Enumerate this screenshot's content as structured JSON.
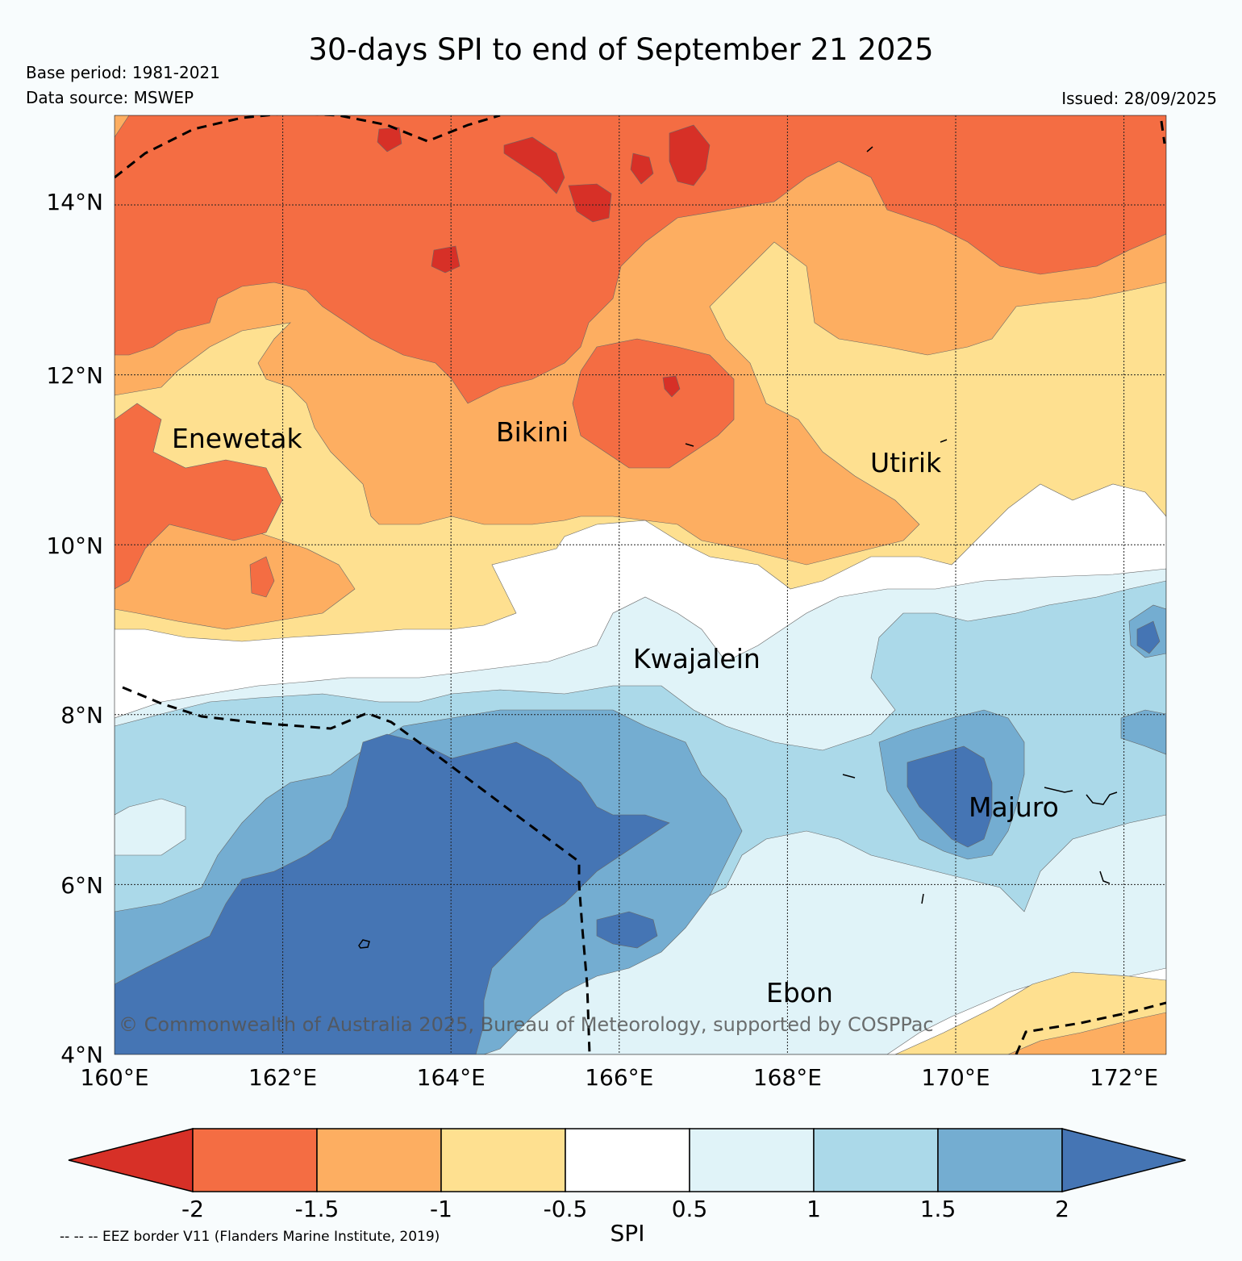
{
  "title": "30-days SPI to end of September 21 2025",
  "meta": {
    "base_period": "Base period: 1981-2021",
    "data_source": "Data source: MSWEP",
    "issued": "Issued: 28/09/2025"
  },
  "map": {
    "lon_range": [
      160,
      172.5
    ],
    "lat_range": [
      4,
      15
    ],
    "lon_ticks": [
      "160°E",
      "162°E",
      "164°E",
      "166°E",
      "168°E",
      "170°E",
      "172°E"
    ],
    "lat_ticks": [
      "4°N",
      "6°N",
      "8°N",
      "10°N",
      "12°N",
      "14°N"
    ],
    "places": [
      {
        "name": "Enewetak",
        "lon": 160.7,
        "lat": 11.3
      },
      {
        "name": "Bikini",
        "lon": 164.55,
        "lat": 11.35
      },
      {
        "name": "Utirik",
        "lon": 168.98,
        "lat": 10.96
      },
      {
        "name": "Kwajalein",
        "lon": 166.17,
        "lat": 8.7
      },
      {
        "name": "Majuro",
        "lon": 170.16,
        "lat": 6.92
      },
      {
        "name": "Ebon",
        "lon": 167.8,
        "lat": 4.7
      }
    ],
    "copyright": "© Commonwealth of Australia 2025, Bureau of Meteorology, supported by COSPPac"
  },
  "legend": {
    "label": "SPI",
    "ticks": [
      "-2",
      "-1.5",
      "-1",
      "-0.5",
      "0.5",
      "1",
      "1.5",
      "2"
    ],
    "colors": [
      "#d73027",
      "#f46d43",
      "#fdae61",
      "#fee090",
      "#ffffff",
      "#e0f3f8",
      "#abd9e9",
      "#74add1",
      "#4575b4"
    ]
  },
  "footnote": "-- -- -- EEZ border V11 (Flanders Marine Institute, 2019)"
}
